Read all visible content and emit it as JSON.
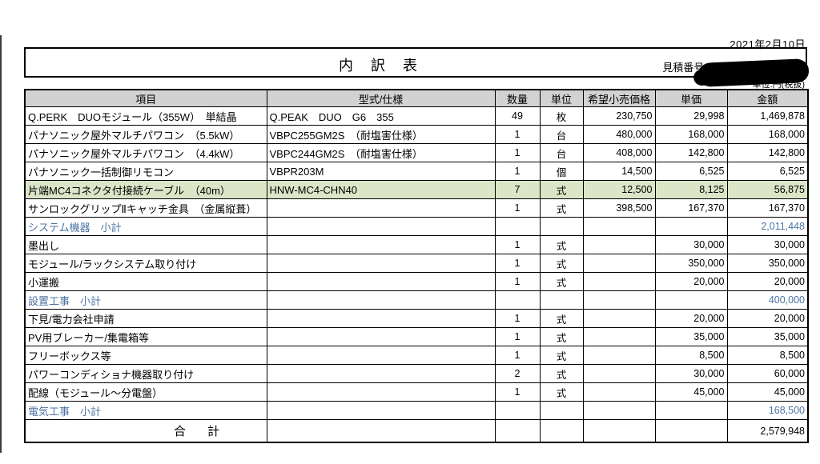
{
  "page": {
    "date": "2021年2月10日",
    "title": "内　訳　表",
    "estimate_label": "見積番号:",
    "unit_note": "単位:円(税抜)"
  },
  "colors": {
    "highlight_row_bg": "#dbe5c7",
    "subtotal_text": "#4d74a4",
    "header_bg": "#d2d2d2",
    "border": "#000000",
    "redaction": "#000000"
  },
  "table": {
    "headers": [
      "項目",
      "型式/仕様",
      "数量",
      "単位",
      "希望小売価格",
      "単価",
      "金額"
    ],
    "rows": [
      {
        "type": "item",
        "item": "Q.PERK　DUOモジュール（355W）　単結晶",
        "model": "Q.PEAK　DUO　G6　355",
        "qty": "49",
        "unit": "枚",
        "retail": "230,750",
        "price": "29,998",
        "amount": "1,469,878"
      },
      {
        "type": "item",
        "item": "パナソニック屋外マルチパワコン　（5.5kW）",
        "model": "VBPC255GM2S　（耐塩害仕様）",
        "qty": "1",
        "unit": "台",
        "retail": "480,000",
        "price": "168,000",
        "amount": "168,000"
      },
      {
        "type": "item",
        "item": "パナソニック屋外マルチパワコン　（4.4kW）",
        "model": "VBPC244GM2S　（耐塩害仕様）",
        "qty": "1",
        "unit": "台",
        "retail": "408,000",
        "price": "142,800",
        "amount": "142,800"
      },
      {
        "type": "item",
        "item": "パナソニック一括制御リモコン",
        "model": "VBPR203M",
        "qty": "1",
        "unit": "個",
        "retail": "14,500",
        "price": "6,525",
        "amount": "6,525"
      },
      {
        "type": "highlight",
        "item": "片端MC4コネクタ付接続ケーブル　（40m）",
        "model": "HNW-MC4-CHN40",
        "qty": "7",
        "unit": "式",
        "retail": "12,500",
        "price": "8,125",
        "amount": "56,875"
      },
      {
        "type": "item",
        "item": "サンロックグリップⅡキャッチ金具　（金属縦葺）",
        "model": "",
        "qty": "1",
        "unit": "式",
        "retail": "398,500",
        "price": "167,370",
        "amount": "167,370"
      },
      {
        "type": "subtotal",
        "item": "システム機器　小計",
        "model": "",
        "qty": "",
        "unit": "",
        "retail": "",
        "price": "",
        "amount": "2,011,448"
      },
      {
        "type": "item",
        "item": "墨出し",
        "model": "",
        "qty": "1",
        "unit": "式",
        "retail": "",
        "price": "30,000",
        "amount": "30,000"
      },
      {
        "type": "item",
        "item": "モジュール/ラックシステム取り付け",
        "model": "",
        "qty": "1",
        "unit": "式",
        "retail": "",
        "price": "350,000",
        "amount": "350,000"
      },
      {
        "type": "item",
        "item": "小運搬",
        "model": "",
        "qty": "1",
        "unit": "式",
        "retail": "",
        "price": "20,000",
        "amount": "20,000"
      },
      {
        "type": "subtotal",
        "item": "設置工事　小計",
        "model": "",
        "qty": "",
        "unit": "",
        "retail": "",
        "price": "",
        "amount": "400,000"
      },
      {
        "type": "item",
        "item": "下見/電力会社申請",
        "model": "",
        "qty": "1",
        "unit": "式",
        "retail": "",
        "price": "20,000",
        "amount": "20,000"
      },
      {
        "type": "item",
        "item": "PV用ブレーカー/集電箱等",
        "model": "",
        "qty": "1",
        "unit": "式",
        "retail": "",
        "price": "35,000",
        "amount": "35,000"
      },
      {
        "type": "item",
        "item": "フリーボックス等",
        "model": "",
        "qty": "1",
        "unit": "式",
        "retail": "",
        "price": "8,500",
        "amount": "8,500"
      },
      {
        "type": "item",
        "item": "パワーコンディショナ機器取り付け",
        "model": "",
        "qty": "2",
        "unit": "式",
        "retail": "",
        "price": "30,000",
        "amount": "60,000"
      },
      {
        "type": "item",
        "item": "配線（モジュール～分電盤）",
        "model": "",
        "qty": "1",
        "unit": "式",
        "retail": "",
        "price": "45,000",
        "amount": "45,000"
      },
      {
        "type": "subtotal",
        "item": "電気工事　小計",
        "model": "",
        "qty": "",
        "unit": "",
        "retail": "",
        "price": "",
        "amount": "168,500"
      },
      {
        "type": "total",
        "item": "合　計",
        "model": "",
        "qty": "",
        "unit": "",
        "retail": "",
        "price": "",
        "amount": "2,579,948"
      }
    ]
  }
}
